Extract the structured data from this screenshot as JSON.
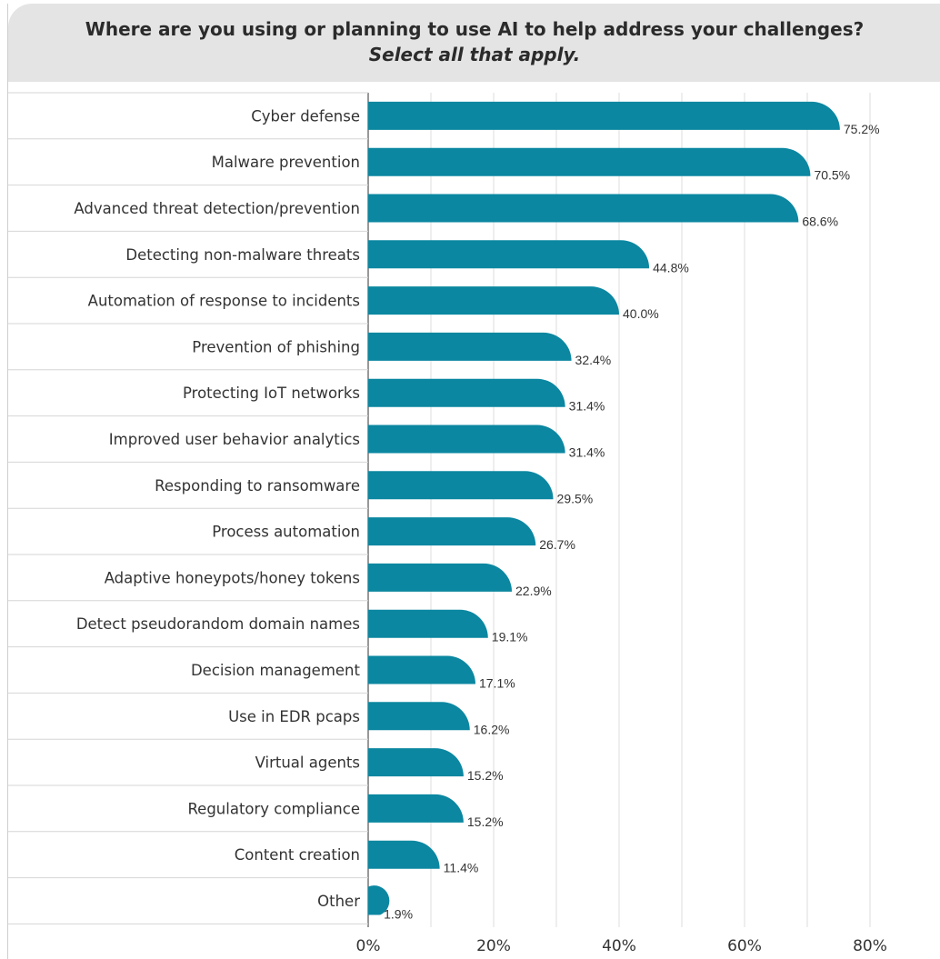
{
  "chart_data": {
    "type": "bar",
    "orientation": "horizontal",
    "title": "Where are you using or planning to use AI to help address your challenges?",
    "subtitle": "Select all that apply.",
    "categories": [
      "Cyber defense",
      "Malware prevention",
      "Advanced threat detection/prevention",
      "Detecting non-malware threats",
      "Automation of response to incidents",
      "Prevention of phishing",
      "Protecting IoT networks",
      "Improved user behavior analytics",
      "Responding to ransomware",
      "Process automation",
      "Adaptive honeypots/honey tokens",
      "Detect pseudorandom domain names",
      "Decision management",
      "Use in EDR pcaps",
      "Virtual agents",
      "Regulatory compliance",
      "Content creation",
      "Other"
    ],
    "values": [
      75.2,
      70.5,
      68.6,
      44.8,
      40.0,
      32.4,
      31.4,
      31.4,
      29.5,
      26.7,
      22.9,
      19.1,
      17.1,
      16.2,
      15.2,
      15.2,
      11.4,
      1.9
    ],
    "value_labels": [
      "75.2%",
      "70.5%",
      "68.6%",
      "44.8%",
      "40.0%",
      "32.4%",
      "31.4%",
      "31.4%",
      "29.5%",
      "26.7%",
      "22.9%",
      "19.1%",
      "17.1%",
      "16.2%",
      "15.2%",
      "15.2%",
      "11.4%",
      "1.9%"
    ],
    "xlim": [
      0,
      80
    ],
    "xticks": [
      "0%",
      "20%",
      "40%",
      "60%",
      "80%"
    ],
    "xtick_values": [
      0,
      20,
      40,
      60,
      80
    ],
    "gridlines": true,
    "bar_color": "#0b87a1"
  }
}
